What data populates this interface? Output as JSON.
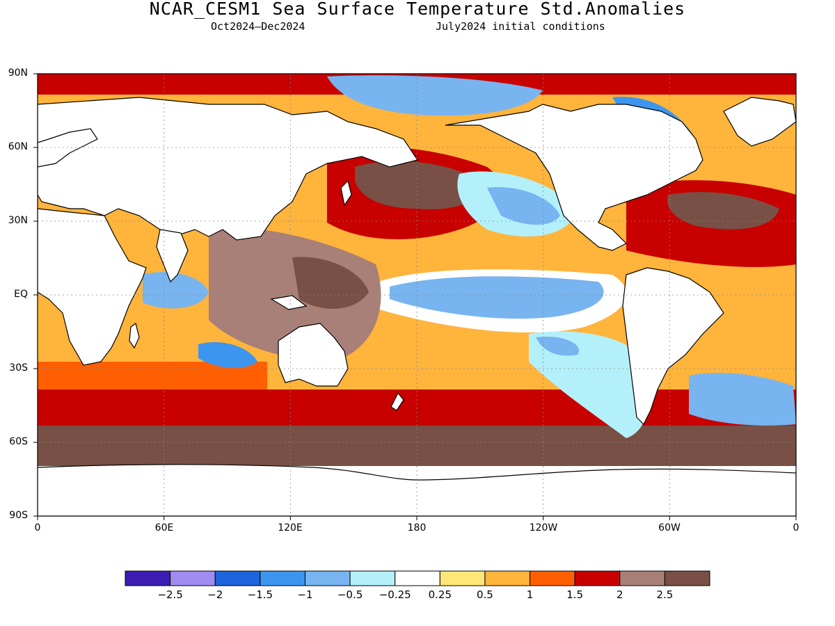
{
  "title": "NCAR_CESM1 Sea Surface Temperature Std.Anomalies",
  "subtitle_left": "Oct2024–Dec2024",
  "subtitle_right": "July2024 initial conditions",
  "lat_labels": [
    "90N",
    "60N",
    "30N",
    "EQ",
    "30S",
    "60S",
    "90S"
  ],
  "lon_labels": [
    "0",
    "60E",
    "120E",
    "180",
    "120W",
    "60W",
    "0"
  ],
  "gridlines": true,
  "colorbar": {
    "colors": [
      "#3c1eb4",
      "#a08cf0",
      "#1e64dc",
      "#3c96f0",
      "#78b4f0",
      "#b4f0fa",
      "#ffffff",
      "#ffe678",
      "#ffb43c",
      "#ff5f00",
      "#c80000",
      "#a88078",
      "#785046"
    ],
    "labels": [
      "−2.5",
      "−2",
      "−1.5",
      "−1",
      "−0.5",
      "−0.25",
      "0.25",
      "0.5",
      "1",
      "1.5",
      "2",
      "2.5"
    ]
  }
}
